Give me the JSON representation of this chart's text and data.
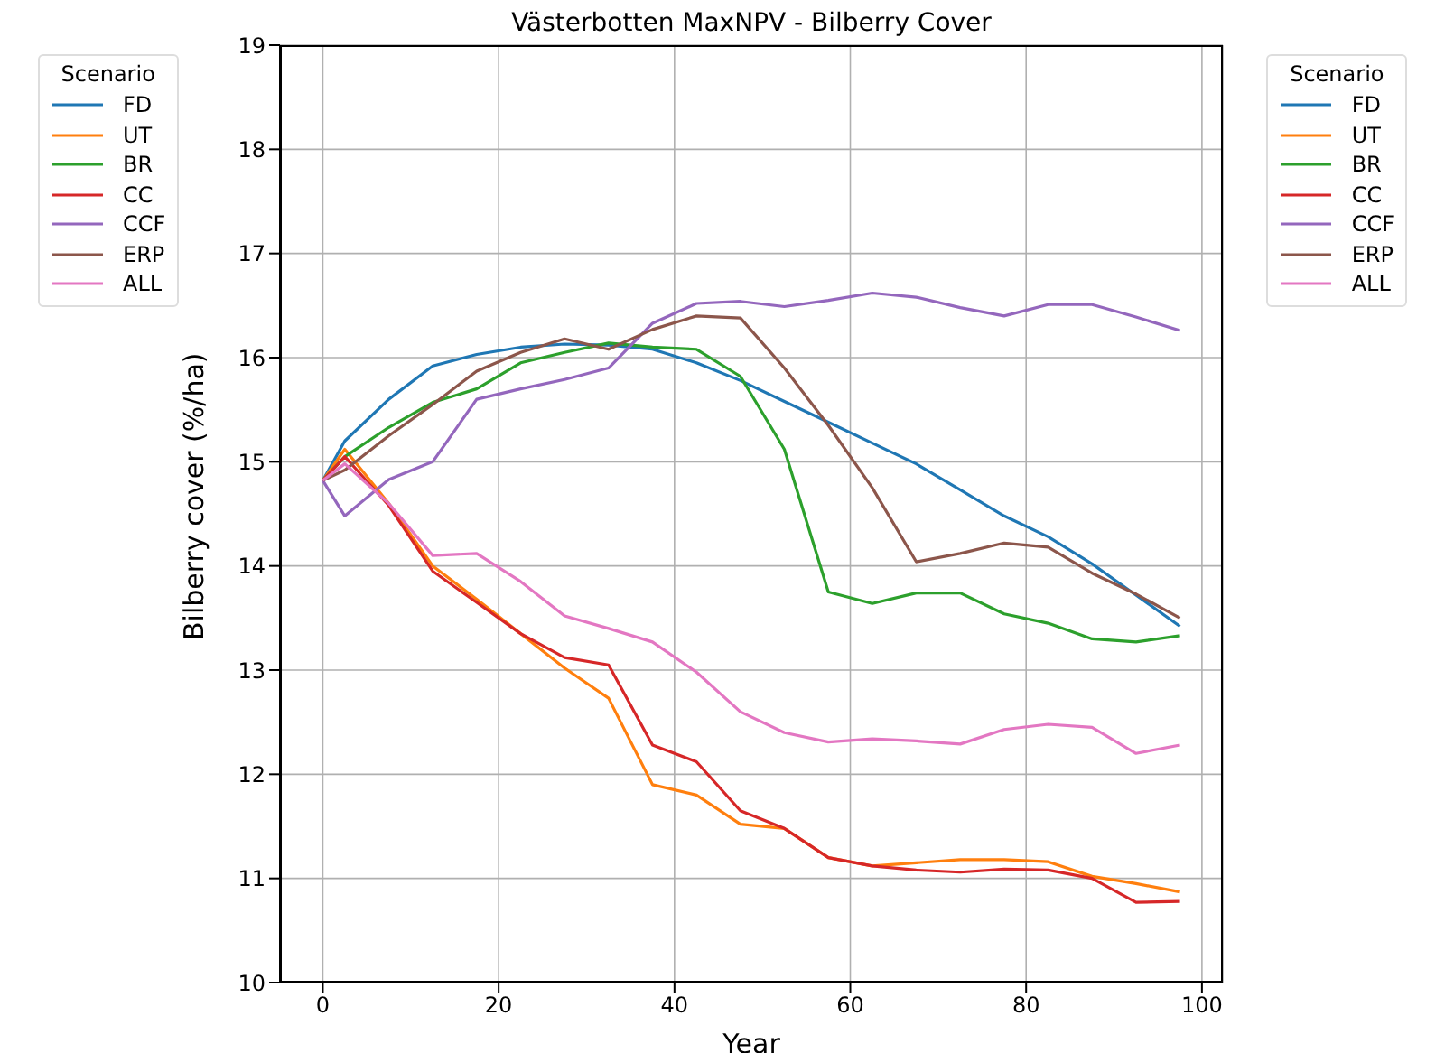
{
  "chart_data": {
    "type": "line",
    "title": "Västerbotten MaxNPV - Bilberry Cover",
    "xlabel": "Year",
    "ylabel": "Bilberry cover (%/ha)",
    "legend_title": "Scenario",
    "x": [
      0,
      2.5,
      7.5,
      12.5,
      17.5,
      22.5,
      27.5,
      32.5,
      37.5,
      42.5,
      47.5,
      52.5,
      57.5,
      62.5,
      67.5,
      72.5,
      77.5,
      82.5,
      87.5,
      92.5,
      97.5
    ],
    "series": [
      {
        "name": "FD",
        "color": "#1f77b4",
        "values": [
          14.82,
          15.2,
          15.6,
          15.92,
          16.03,
          16.1,
          16.13,
          16.12,
          16.08,
          15.95,
          15.78,
          15.58,
          15.38,
          15.18,
          14.98,
          14.73,
          14.48,
          14.28,
          14.02,
          13.72,
          13.42
        ]
      },
      {
        "name": "UT",
        "color": "#ff7f0e",
        "values": [
          14.82,
          15.12,
          14.6,
          14.0,
          13.68,
          13.35,
          13.02,
          12.73,
          11.9,
          11.8,
          11.52,
          11.48,
          11.2,
          11.12,
          11.15,
          11.18,
          11.18,
          11.16,
          11.02,
          10.95,
          10.87
        ]
      },
      {
        "name": "BR",
        "color": "#2ca02c",
        "values": [
          14.82,
          15.05,
          15.33,
          15.57,
          15.7,
          15.95,
          16.05,
          16.14,
          16.1,
          16.08,
          15.82,
          15.12,
          13.75,
          13.64,
          13.74,
          13.74,
          13.54,
          13.45,
          13.3,
          13.27,
          13.33
        ]
      },
      {
        "name": "CC",
        "color": "#d62728",
        "values": [
          14.82,
          15.05,
          14.58,
          13.95,
          13.65,
          13.35,
          13.12,
          13.05,
          12.28,
          12.12,
          11.65,
          11.48,
          11.2,
          11.12,
          11.08,
          11.06,
          11.09,
          11.08,
          11.0,
          10.77,
          10.78
        ]
      },
      {
        "name": "CCF",
        "color": "#9467bd",
        "values": [
          14.82,
          14.48,
          14.83,
          15.0,
          15.6,
          15.7,
          15.79,
          15.9,
          16.33,
          16.52,
          16.54,
          16.49,
          16.55,
          16.62,
          16.58,
          16.48,
          16.4,
          16.51,
          16.51,
          16.39,
          16.26
        ]
      },
      {
        "name": "ERP",
        "color": "#8c564b",
        "values": [
          14.82,
          14.92,
          15.25,
          15.55,
          15.87,
          16.05,
          16.18,
          16.08,
          16.27,
          16.4,
          16.38,
          15.9,
          15.35,
          14.75,
          14.04,
          14.12,
          14.22,
          14.18,
          13.93,
          13.73,
          13.5
        ]
      },
      {
        "name": "ALL",
        "color": "#e377c2",
        "values": [
          14.82,
          14.98,
          14.6,
          14.1,
          14.12,
          13.85,
          13.52,
          13.4,
          13.27,
          12.98,
          12.6,
          12.4,
          12.31,
          12.34,
          12.32,
          12.29,
          12.43,
          12.48,
          12.45,
          12.2,
          12.28
        ]
      }
    ],
    "xlim": [
      -4.875,
      102.375
    ],
    "xticks": [
      0,
      20,
      40,
      60,
      80,
      100
    ],
    "ylim": [
      10,
      19
    ],
    "yticks": [
      10,
      11,
      12,
      13,
      14,
      15,
      16,
      17,
      18,
      19
    ],
    "grid": true,
    "legend": [
      "top left",
      "top right"
    ],
    "marker": "none",
    "line_style": "solid"
  }
}
